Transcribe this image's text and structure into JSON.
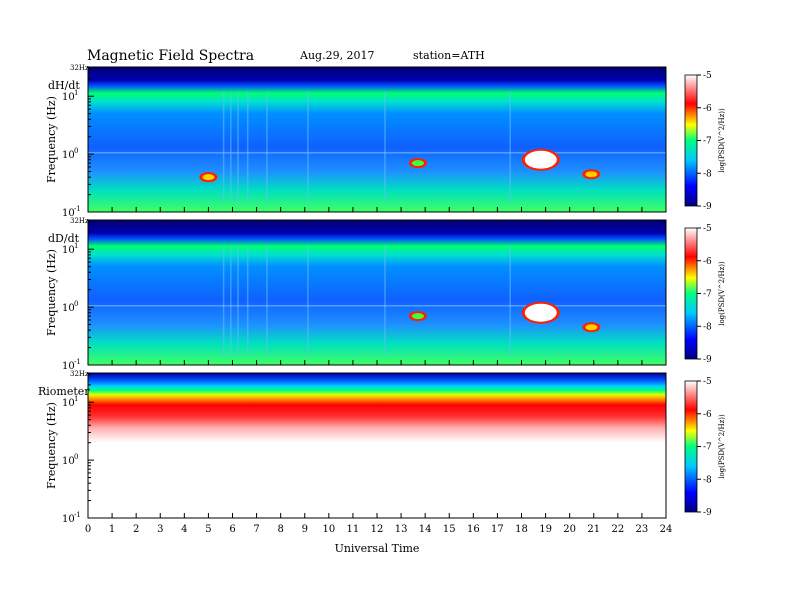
{
  "header": {
    "title": "Magnetic  Field  Spectra",
    "date": "Aug.29, 2017",
    "station": "station=ATH"
  },
  "chart_data": [
    {
      "type": "heatmap",
      "panel_label": "dH/dt",
      "ylabel": "Frequency (Hz)",
      "yscale": "log",
      "ylim": [
        0.1,
        32
      ],
      "y_ticks": [
        {
          "label": "10",
          "exp": "1"
        },
        {
          "label": "10",
          "exp": "0"
        },
        {
          "label": "10",
          "exp": "-1"
        }
      ],
      "y_top_label": "32Hz",
      "xlim": [
        0,
        24
      ],
      "colorbar": {
        "label": "log(PSD(V^2/Hz))",
        "range": [
          -9,
          -5
        ],
        "ticks": [
          "-5",
          "-6",
          "-7",
          "-8",
          "-9"
        ],
        "colors": [
          "#000080",
          "#0000ff",
          "#00c8ff",
          "#00ff80",
          "#ffff00",
          "#ff0000",
          "#ffffff"
        ]
      },
      "features": [
        {
          "time": 18.8,
          "freq": 0.8,
          "level": -5.2
        },
        {
          "time": 20.9,
          "freq": 0.45,
          "level": -6.5
        },
        {
          "time": 13.7,
          "freq": 0.7,
          "level": -6.8
        },
        {
          "time": 5.0,
          "freq": 0.4,
          "level": -6.5
        }
      ]
    },
    {
      "type": "heatmap",
      "panel_label": "dD/dt",
      "ylabel": "Frequency (Hz)",
      "yscale": "log",
      "ylim": [
        0.1,
        32
      ],
      "y_ticks": [
        {
          "label": "10",
          "exp": "1"
        },
        {
          "label": "10",
          "exp": "0"
        },
        {
          "label": "10",
          "exp": "-1"
        }
      ],
      "y_top_label": "32Hz",
      "xlim": [
        0,
        24
      ],
      "colorbar": {
        "label": "log(PSD(V^2/Hz))",
        "range": [
          -9,
          -5
        ],
        "ticks": [
          "-5",
          "-6",
          "-7",
          "-8",
          "-9"
        ],
        "colors": [
          "#000080",
          "#0000ff",
          "#00c8ff",
          "#00ff80",
          "#ffff00",
          "#ff0000",
          "#ffffff"
        ]
      },
      "features": [
        {
          "time": 18.8,
          "freq": 0.8,
          "level": -5.2
        },
        {
          "time": 20.9,
          "freq": 0.45,
          "level": -6.5
        },
        {
          "time": 13.7,
          "freq": 0.7,
          "level": -6.8
        }
      ]
    },
    {
      "type": "heatmap",
      "panel_label": "Riometer",
      "ylabel": "Frequency (Hz)",
      "yscale": "log",
      "ylim": [
        0.1,
        32
      ],
      "y_ticks": [
        {
          "label": "10",
          "exp": "1"
        },
        {
          "label": "10",
          "exp": "0"
        },
        {
          "label": "10",
          "exp": "-1"
        }
      ],
      "y_top_label": "32Hz",
      "xlim": [
        0,
        24
      ],
      "colorbar": {
        "label": "log(PSD(V^2/Hz))",
        "range": [
          -9,
          -5
        ],
        "ticks": [
          "-5",
          "-6",
          "-7",
          "-8",
          "-9"
        ],
        "colors": [
          "#000080",
          "#0000ff",
          "#00c8ff",
          "#00ff80",
          "#ffff00",
          "#ff0000",
          "#ffffff"
        ]
      },
      "features": []
    }
  ],
  "xaxis": {
    "label": "Universal Time",
    "ticks": [
      "0",
      "1",
      "2",
      "3",
      "4",
      "5",
      "6",
      "7",
      "8",
      "9",
      "10",
      "11",
      "12",
      "13",
      "14",
      "15",
      "16",
      "17",
      "18",
      "19",
      "20",
      "21",
      "22",
      "23",
      "24"
    ]
  }
}
